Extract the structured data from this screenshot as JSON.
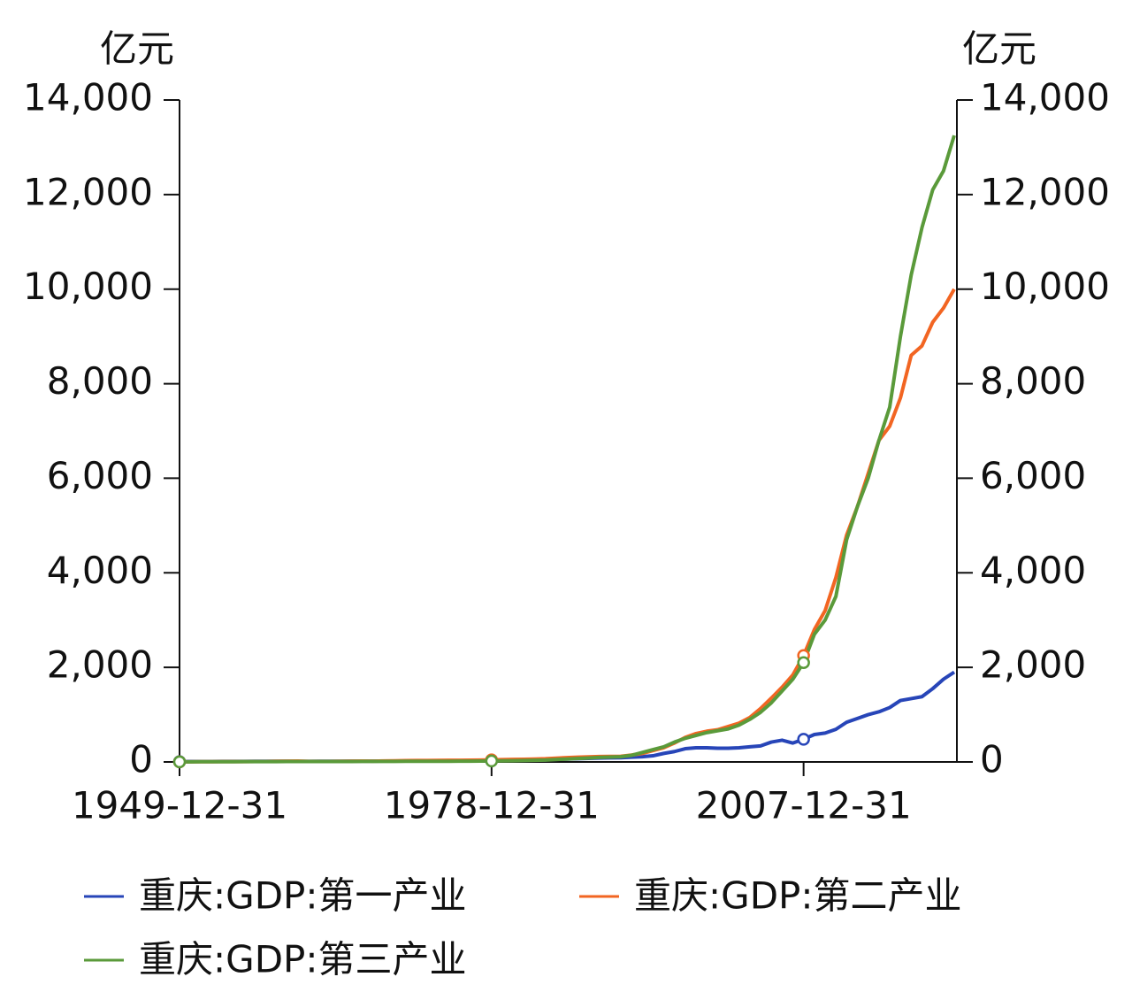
{
  "chart_data": {
    "type": "line",
    "y_label": "亿元",
    "y2_label": "亿元",
    "x": [
      "1949-12-31",
      "1950-12-31",
      "1951-12-31",
      "1952-12-31",
      "1953-12-31",
      "1954-12-31",
      "1955-12-31",
      "1956-12-31",
      "1957-12-31",
      "1958-12-31",
      "1959-12-31",
      "1960-12-31",
      "1961-12-31",
      "1962-12-31",
      "1963-12-31",
      "1964-12-31",
      "1965-12-31",
      "1966-12-31",
      "1967-12-31",
      "1968-12-31",
      "1969-12-31",
      "1970-12-31",
      "1971-12-31",
      "1972-12-31",
      "1973-12-31",
      "1974-12-31",
      "1975-12-31",
      "1976-12-31",
      "1977-12-31",
      "1978-12-31",
      "1979-12-31",
      "1980-12-31",
      "1981-12-31",
      "1982-12-31",
      "1983-12-31",
      "1984-12-31",
      "1985-12-31",
      "1986-12-31",
      "1987-12-31",
      "1988-12-31",
      "1989-12-31",
      "1990-12-31",
      "1991-12-31",
      "1992-12-31",
      "1993-12-31",
      "1994-12-31",
      "1995-12-31",
      "1996-12-31",
      "1997-12-31",
      "1998-12-31",
      "1999-12-31",
      "2000-12-31",
      "2001-12-31",
      "2002-12-31",
      "2003-12-31",
      "2004-12-31",
      "2005-12-31",
      "2006-12-31",
      "2007-12-31",
      "2008-12-31",
      "2009-12-31",
      "2010-12-31",
      "2011-12-31",
      "2012-12-31",
      "2013-12-31",
      "2014-12-31",
      "2015-12-31",
      "2016-12-31",
      "2017-12-31",
      "2018-12-31",
      "2019-12-31",
      "2020-12-31",
      "2021-12-31"
    ],
    "series": [
      {
        "name": "重庆:GDP:第一产业",
        "color": "#2745b8",
        "values": [
          8,
          9,
          10,
          10,
          11,
          12,
          12,
          13,
          13,
          14,
          13,
          12,
          12,
          13,
          14,
          15,
          16,
          17,
          17,
          18,
          18,
          19,
          20,
          20,
          21,
          21,
          22,
          23,
          24,
          25,
          30,
          33,
          36,
          40,
          44,
          55,
          62,
          68,
          75,
          82,
          86,
          90,
          100,
          110,
          130,
          180,
          220,
          280,
          300,
          300,
          290,
          290,
          300,
          320,
          340,
          420,
          460,
          400,
          480,
          580,
          610,
          690,
          840,
          920,
          1000,
          1060,
          1150,
          1300,
          1340,
          1380,
          1550,
          1750,
          1900
        ]
      },
      {
        "name": "重庆:GDP:第二产业",
        "color": "#f26522",
        "values": [
          2,
          3,
          4,
          5,
          6,
          7,
          8,
          9,
          10,
          13,
          17,
          19,
          12,
          11,
          12,
          14,
          17,
          18,
          16,
          20,
          24,
          28,
          30,
          31,
          33,
          34,
          36,
          38,
          40,
          45,
          50,
          53,
          57,
          62,
          68,
          80,
          92,
          100,
          108,
          115,
          118,
          120,
          145,
          180,
          240,
          300,
          400,
          520,
          600,
          650,
          680,
          750,
          820,
          940,
          1130,
          1350,
          1580,
          1840,
          2250,
          2800,
          3200,
          3900,
          4800,
          5400,
          6100,
          6800,
          7100,
          7700,
          8600,
          8800,
          9300,
          9600,
          10000
        ]
      },
      {
        "name": "重庆:GDP:第三产业",
        "color": "#5a9a3a",
        "values": [
          3,
          3,
          4,
          4,
          5,
          5,
          6,
          6,
          7,
          8,
          9,
          10,
          9,
          9,
          9,
          10,
          10,
          11,
          11,
          12,
          12,
          13,
          13,
          14,
          15,
          15,
          16,
          17,
          18,
          20,
          23,
          26,
          30,
          34,
          40,
          52,
          62,
          72,
          82,
          95,
          102,
          110,
          140,
          200,
          260,
          320,
          420,
          500,
          560,
          620,
          660,
          700,
          780,
          900,
          1050,
          1250,
          1500,
          1750,
          2100,
          2700,
          3000,
          3500,
          4700,
          5400,
          6000,
          6800,
          7500,
          9000,
          10300,
          11300,
          12100,
          12500,
          13250
        ]
      }
    ],
    "xlim": [
      "1949-12-31",
      "2022-03-31"
    ],
    "xticks": [
      "1949-12-31",
      "1978-12-31",
      "2007-12-31"
    ],
    "ylim": [
      0,
      14000
    ],
    "yticks": [
      0,
      {
        "value": 2000,
        "label": "2,000"
      },
      {
        "value": 4000,
        "label": "4,000"
      },
      {
        "value": 6000,
        "label": "6,000"
      },
      {
        "value": 8000,
        "label": "8,000"
      },
      {
        "value": 10000,
        "label": "10,000"
      },
      {
        "value": 12000,
        "label": "12,000"
      },
      {
        "value": 14000,
        "label": "14,000"
      }
    ],
    "y2lim": [
      0,
      14000
    ],
    "y2ticks": [
      0,
      {
        "value": 2000,
        "label": "2,000"
      },
      {
        "value": 4000,
        "label": "4,000"
      },
      {
        "value": 6000,
        "label": "6,000"
      },
      {
        "value": 8000,
        "label": "8,000"
      },
      {
        "value": 10000,
        "label": "10,000"
      },
      {
        "value": 12000,
        "label": "12,000"
      },
      {
        "value": 14000,
        "label": "14,000"
      }
    ],
    "grid": false,
    "legend": "bottom"
  }
}
